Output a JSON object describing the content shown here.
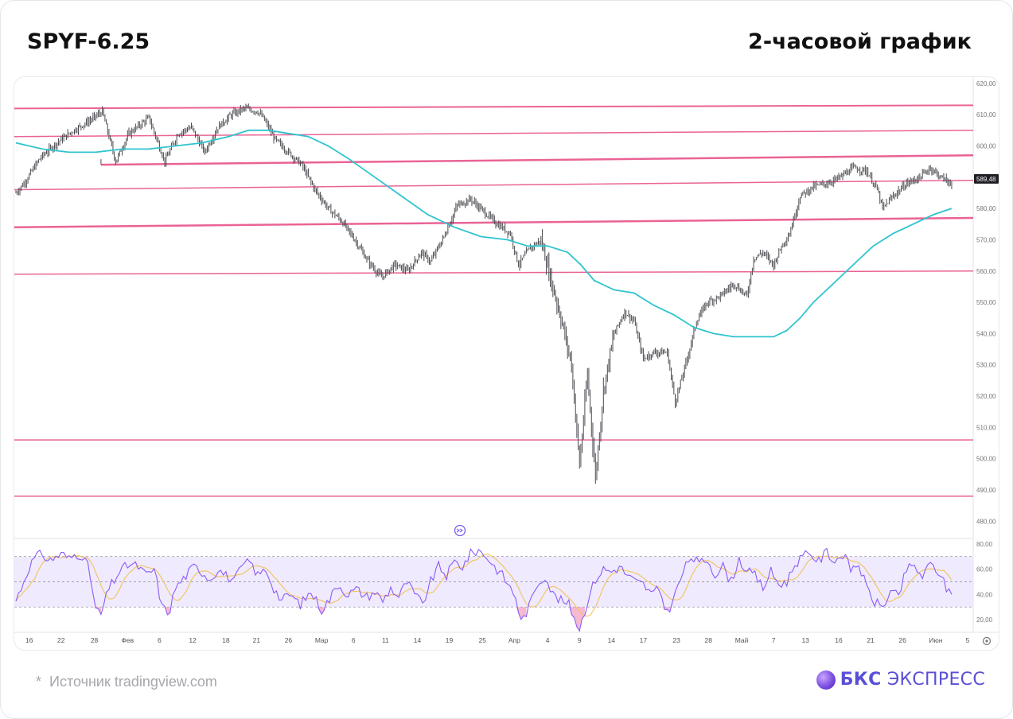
{
  "header": {
    "ticker": "SPYF-6.25",
    "timeframe": "2-часовой график"
  },
  "footer": {
    "source": "Источник tradingview.com",
    "brand_bold": "БКС",
    "brand_rest": "ЭКСПРЕСС"
  },
  "colors": {
    "candle": "#4a4a50",
    "ma": "#2ec4cf",
    "levels": "#e8528a",
    "rsi_line": "#8b5cf6",
    "rsi_signal": "#f2c35c",
    "rsi_band": "#efeafd"
  },
  "chart_data": [
    {
      "type": "line",
      "series_style": "candlestick",
      "y_scale": "price",
      "ylim": [
        475,
        622
      ],
      "y_ticks": [
        "620,00",
        "610,00",
        "600,00",
        "590,00",
        "580,00",
        "570,00",
        "560,00",
        "550,00",
        "540,00",
        "530,00",
        "520,00",
        "510,00",
        "500,00",
        "490,00",
        "480,00"
      ],
      "y_tick_values": [
        620,
        610,
        600,
        590,
        580,
        570,
        560,
        550,
        540,
        530,
        520,
        510,
        500,
        490,
        480
      ],
      "last_price_label": "589,48",
      "last_price": 589.48,
      "x_ticks": [
        "16",
        "22",
        "28",
        "Фев",
        "6",
        "12",
        "18",
        "21",
        "26",
        "Мар",
        "6",
        "11",
        "14",
        "19",
        "25",
        "Апр",
        "4",
        "9",
        "14",
        "17",
        "23",
        "28",
        "Май",
        "7",
        "13",
        "16",
        "21",
        "26",
        "Июн",
        "5"
      ],
      "x_tick_index": [
        10,
        34,
        59,
        84,
        108,
        133,
        158,
        181,
        205,
        230,
        254,
        278,
        302,
        326,
        351,
        375,
        400,
        424,
        448,
        472,
        497,
        521,
        546,
        570,
        594,
        619,
        643,
        667,
        692,
        716
      ],
      "x_count": 720,
      "price_path": [
        [
          0,
          585
        ],
        [
          6,
          588
        ],
        [
          12,
          592
        ],
        [
          18,
          596
        ],
        [
          28,
          600
        ],
        [
          40,
          604
        ],
        [
          55,
          608
        ],
        [
          65,
          611
        ],
        [
          75,
          595
        ],
        [
          85,
          604
        ],
        [
          100,
          609
        ],
        [
          112,
          595
        ],
        [
          122,
          604
        ],
        [
          132,
          606
        ],
        [
          142,
          598
        ],
        [
          152,
          606
        ],
        [
          162,
          610
        ],
        [
          172,
          612
        ],
        [
          182,
          611
        ],
        [
          186,
          609
        ],
        [
          195,
          602
        ],
        [
          205,
          598
        ],
        [
          215,
          594
        ],
        [
          225,
          586
        ],
        [
          235,
          580
        ],
        [
          245,
          576
        ],
        [
          255,
          570
        ],
        [
          265,
          563
        ],
        [
          275,
          558
        ],
        [
          285,
          562
        ],
        [
          295,
          560
        ],
        [
          305,
          566
        ],
        [
          312,
          563
        ],
        [
          322,
          571
        ],
        [
          332,
          581
        ],
        [
          342,
          583
        ],
        [
          352,
          579
        ],
        [
          362,
          575
        ],
        [
          372,
          572
        ],
        [
          378,
          562
        ],
        [
          386,
          567
        ],
        [
          395,
          570
        ],
        [
          402,
          558
        ],
        [
          410,
          545
        ],
        [
          418,
          530
        ],
        [
          424,
          498
        ],
        [
          430,
          527
        ],
        [
          436,
          494
        ],
        [
          442,
          522
        ],
        [
          450,
          540
        ],
        [
          458,
          547
        ],
        [
          465,
          544
        ],
        [
          472,
          532
        ],
        [
          480,
          534
        ],
        [
          490,
          534
        ],
        [
          496,
          518
        ],
        [
          505,
          532
        ],
        [
          512,
          544
        ],
        [
          520,
          550
        ],
        [
          530,
          552
        ],
        [
          540,
          556
        ],
        [
          550,
          552
        ],
        [
          555,
          564
        ],
        [
          562,
          566
        ],
        [
          570,
          562
        ],
        [
          576,
          568
        ],
        [
          582,
          572
        ],
        [
          590,
          584
        ],
        [
          600,
          587
        ],
        [
          610,
          588
        ],
        [
          620,
          590
        ],
        [
          630,
          593
        ],
        [
          640,
          592
        ],
        [
          648,
          586
        ],
        [
          652,
          580
        ],
        [
          660,
          584
        ],
        [
          670,
          588
        ],
        [
          680,
          590
        ],
        [
          688,
          593
        ],
        [
          696,
          590
        ],
        [
          704,
          588
        ]
      ],
      "ma_path": [
        [
          0,
          601
        ],
        [
          20,
          599
        ],
        [
          40,
          598
        ],
        [
          60,
          598
        ],
        [
          80,
          599
        ],
        [
          100,
          599
        ],
        [
          120,
          600
        ],
        [
          140,
          601
        ],
        [
          160,
          603
        ],
        [
          175,
          605
        ],
        [
          190,
          605
        ],
        [
          205,
          604
        ],
        [
          220,
          603
        ],
        [
          235,
          600
        ],
        [
          250,
          596
        ],
        [
          270,
          590
        ],
        [
          290,
          584
        ],
        [
          310,
          578
        ],
        [
          330,
          574
        ],
        [
          350,
          571
        ],
        [
          370,
          570
        ],
        [
          385,
          568
        ],
        [
          400,
          568
        ],
        [
          415,
          566
        ],
        [
          425,
          562
        ],
        [
          435,
          557
        ],
        [
          450,
          554
        ],
        [
          465,
          553
        ],
        [
          480,
          549
        ],
        [
          495,
          546
        ],
        [
          510,
          542
        ],
        [
          525,
          540
        ],
        [
          540,
          539
        ],
        [
          555,
          539
        ],
        [
          570,
          539
        ],
        [
          580,
          541
        ],
        [
          590,
          545
        ],
        [
          600,
          550
        ],
        [
          615,
          556
        ],
        [
          630,
          562
        ],
        [
          645,
          568
        ],
        [
          660,
          572
        ],
        [
          675,
          575
        ],
        [
          690,
          578
        ],
        [
          704,
          580
        ]
      ],
      "levels": [
        {
          "y_start": 612,
          "y_end": 613,
          "width": 2
        },
        {
          "y_start": 603,
          "y_end": 605,
          "width": 1.5
        },
        {
          "y_start": 594,
          "y_end": 597,
          "width": 2.5,
          "x_start": 64
        },
        {
          "y_start": 586,
          "y_end": 589,
          "width": 1.5
        },
        {
          "y_start": 574,
          "y_end": 577,
          "width": 2.5
        },
        {
          "y_start": 559,
          "y_end": 560,
          "width": 1.5
        },
        {
          "y_start": 506,
          "y_end": 506,
          "width": 1.5
        },
        {
          "y_start": 488,
          "y_end": 488,
          "width": 1.5
        }
      ]
    },
    {
      "type": "line",
      "ylim": [
        10,
        83
      ],
      "y_ticks": [
        "80,00",
        "60,00",
        "40,00",
        "20,00"
      ],
      "y_tick_values": [
        80,
        60,
        40,
        20
      ],
      "band": [
        30,
        70
      ],
      "midline": 50,
      "rsi_path": [
        [
          0,
          35
        ],
        [
          5,
          48
        ],
        [
          10,
          62
        ],
        [
          15,
          70
        ],
        [
          20,
          72
        ],
        [
          25,
          66
        ],
        [
          30,
          70
        ],
        [
          35,
          72
        ],
        [
          40,
          68
        ],
        [
          45,
          72
        ],
        [
          50,
          71
        ],
        [
          55,
          60
        ],
        [
          60,
          28
        ],
        [
          64,
          24
        ],
        [
          70,
          45
        ],
        [
          78,
          58
        ],
        [
          85,
          64
        ],
        [
          92,
          62
        ],
        [
          98,
          55
        ],
        [
          104,
          60
        ],
        [
          110,
          30
        ],
        [
          115,
          25
        ],
        [
          120,
          45
        ],
        [
          128,
          55
        ],
        [
          134,
          62
        ],
        [
          140,
          58
        ],
        [
          146,
          52
        ],
        [
          152,
          60
        ],
        [
          158,
          55
        ],
        [
          164,
          50
        ],
        [
          170,
          62
        ],
        [
          176,
          66
        ],
        [
          182,
          55
        ],
        [
          188,
          60
        ],
        [
          194,
          45
        ],
        [
          200,
          35
        ],
        [
          206,
          40
        ],
        [
          214,
          32
        ],
        [
          222,
          42
        ],
        [
          230,
          28
        ],
        [
          236,
          36
        ],
        [
          242,
          48
        ],
        [
          250,
          40
        ],
        [
          256,
          44
        ],
        [
          264,
          38
        ],
        [
          270,
          42
        ],
        [
          276,
          35
        ],
        [
          282,
          45
        ],
        [
          288,
          38
        ],
        [
          294,
          50
        ],
        [
          300,
          40
        ],
        [
          306,
          32
        ],
        [
          312,
          50
        ],
        [
          318,
          62
        ],
        [
          324,
          55
        ],
        [
          330,
          66
        ],
        [
          336,
          62
        ],
        [
          342,
          72
        ],
        [
          348,
          75
        ],
        [
          354,
          70
        ],
        [
          360,
          62
        ],
        [
          366,
          55
        ],
        [
          372,
          45
        ],
        [
          376,
          38
        ],
        [
          380,
          18
        ],
        [
          386,
          30
        ],
        [
          392,
          48
        ],
        [
          398,
          55
        ],
        [
          404,
          40
        ],
        [
          410,
          35
        ],
        [
          416,
          32
        ],
        [
          420,
          22
        ],
        [
          424,
          12
        ],
        [
          430,
          35
        ],
        [
          436,
          52
        ],
        [
          442,
          60
        ],
        [
          448,
          58
        ],
        [
          454,
          62
        ],
        [
          460,
          55
        ],
        [
          466,
          50
        ],
        [
          472,
          48
        ],
        [
          478,
          40
        ],
        [
          484,
          44
        ],
        [
          490,
          25
        ],
        [
          496,
          40
        ],
        [
          502,
          58
        ],
        [
          508,
          70
        ],
        [
          514,
          64
        ],
        [
          520,
          68
        ],
        [
          526,
          56
        ],
        [
          532,
          62
        ],
        [
          538,
          50
        ],
        [
          544,
          68
        ],
        [
          550,
          58
        ],
        [
          556,
          55
        ],
        [
          562,
          45
        ],
        [
          568,
          58
        ],
        [
          574,
          48
        ],
        [
          580,
          50
        ],
        [
          586,
          64
        ],
        [
          592,
          70
        ],
        [
          598,
          72
        ],
        [
          604,
          66
        ],
        [
          610,
          74
        ],
        [
          616,
          66
        ],
        [
          622,
          72
        ],
        [
          628,
          60
        ],
        [
          634,
          64
        ],
        [
          640,
          45
        ],
        [
          646,
          34
        ],
        [
          652,
          30
        ],
        [
          658,
          42
        ],
        [
          664,
          38
        ],
        [
          670,
          60
        ],
        [
          676,
          62
        ],
        [
          682,
          54
        ],
        [
          688,
          64
        ],
        [
          694,
          58
        ],
        [
          700,
          45
        ],
        [
          704,
          40
        ]
      ]
    }
  ]
}
